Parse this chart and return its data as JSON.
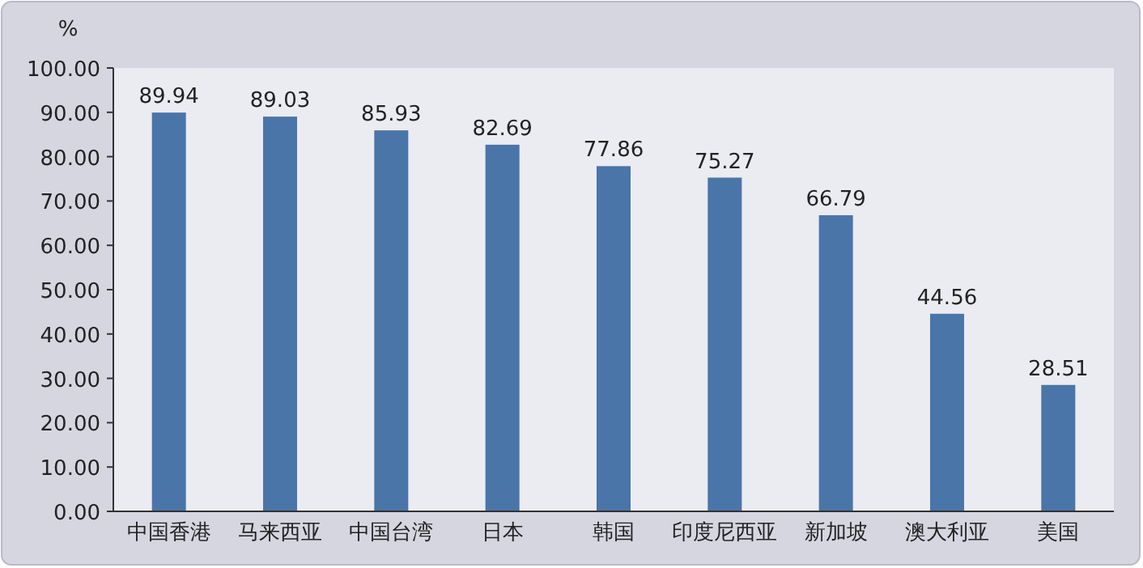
{
  "chart_data": {
    "type": "bar",
    "ylabel": "%",
    "categories": [
      "中国香港",
      "马来西亚",
      "中国台湾",
      "日本",
      "韩国",
      "印度尼西亚",
      "新加坡",
      "澳大利亚",
      "美国"
    ],
    "values": [
      89.94,
      89.03,
      85.93,
      82.69,
      77.86,
      75.27,
      66.79,
      44.56,
      28.51
    ],
    "color": "#4a75a8",
    "ylim": [
      0,
      100
    ],
    "yticks": [
      {
        "value": 0,
        "label": "0.00"
      },
      {
        "value": 10,
        "label": "10.00"
      },
      {
        "value": 20,
        "label": "20.00"
      },
      {
        "value": 30,
        "label": "30.00"
      },
      {
        "value": 40,
        "label": "40.00"
      },
      {
        "value": 50,
        "label": "50.00"
      },
      {
        "value": 60,
        "label": "60.00"
      },
      {
        "value": 70,
        "label": "70.00"
      },
      {
        "value": 80,
        "label": "80.00"
      },
      {
        "value": 90,
        "label": "90.00"
      },
      {
        "value": 100,
        "label": "100.00"
      }
    ],
    "data_labels": true,
    "grid": false
  }
}
